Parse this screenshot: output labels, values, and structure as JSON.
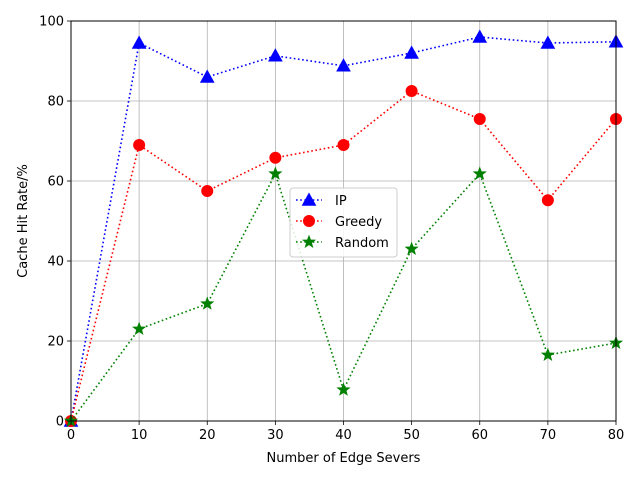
{
  "chart_data": {
    "type": "line",
    "title": "",
    "xlabel": "Number of Edge Severs",
    "ylabel": "Cache Hit Rate/%",
    "x": [
      0,
      10,
      20,
      30,
      40,
      50,
      60,
      70,
      80
    ],
    "xlim": [
      0,
      80
    ],
    "ylim": [
      0,
      100
    ],
    "xticks": [
      0,
      10,
      20,
      30,
      40,
      50,
      60,
      70,
      80
    ],
    "yticks": [
      0,
      20,
      40,
      60,
      80,
      100
    ],
    "grid": true,
    "legend_position": "center",
    "series": [
      {
        "name": " IP",
        "color": "#0000ff",
        "marker": "triangle",
        "linestyle": "dotted",
        "values": [
          0,
          94.5,
          86,
          91.3,
          88.8,
          92,
          96,
          94.5,
          94.8
        ]
      },
      {
        "name": "Greedy",
        "color": "#ff0000",
        "marker": "circle",
        "linestyle": "dotted",
        "values": [
          0,
          69,
          57.5,
          65.8,
          69,
          82.5,
          75.5,
          55.2,
          75.5
        ]
      },
      {
        "name": "Random",
        "color": "#008000",
        "marker": "star",
        "linestyle": "dotted",
        "values": [
          0,
          23,
          29.3,
          61.8,
          7.8,
          43,
          61.8,
          16.5,
          19.5
        ]
      }
    ]
  }
}
